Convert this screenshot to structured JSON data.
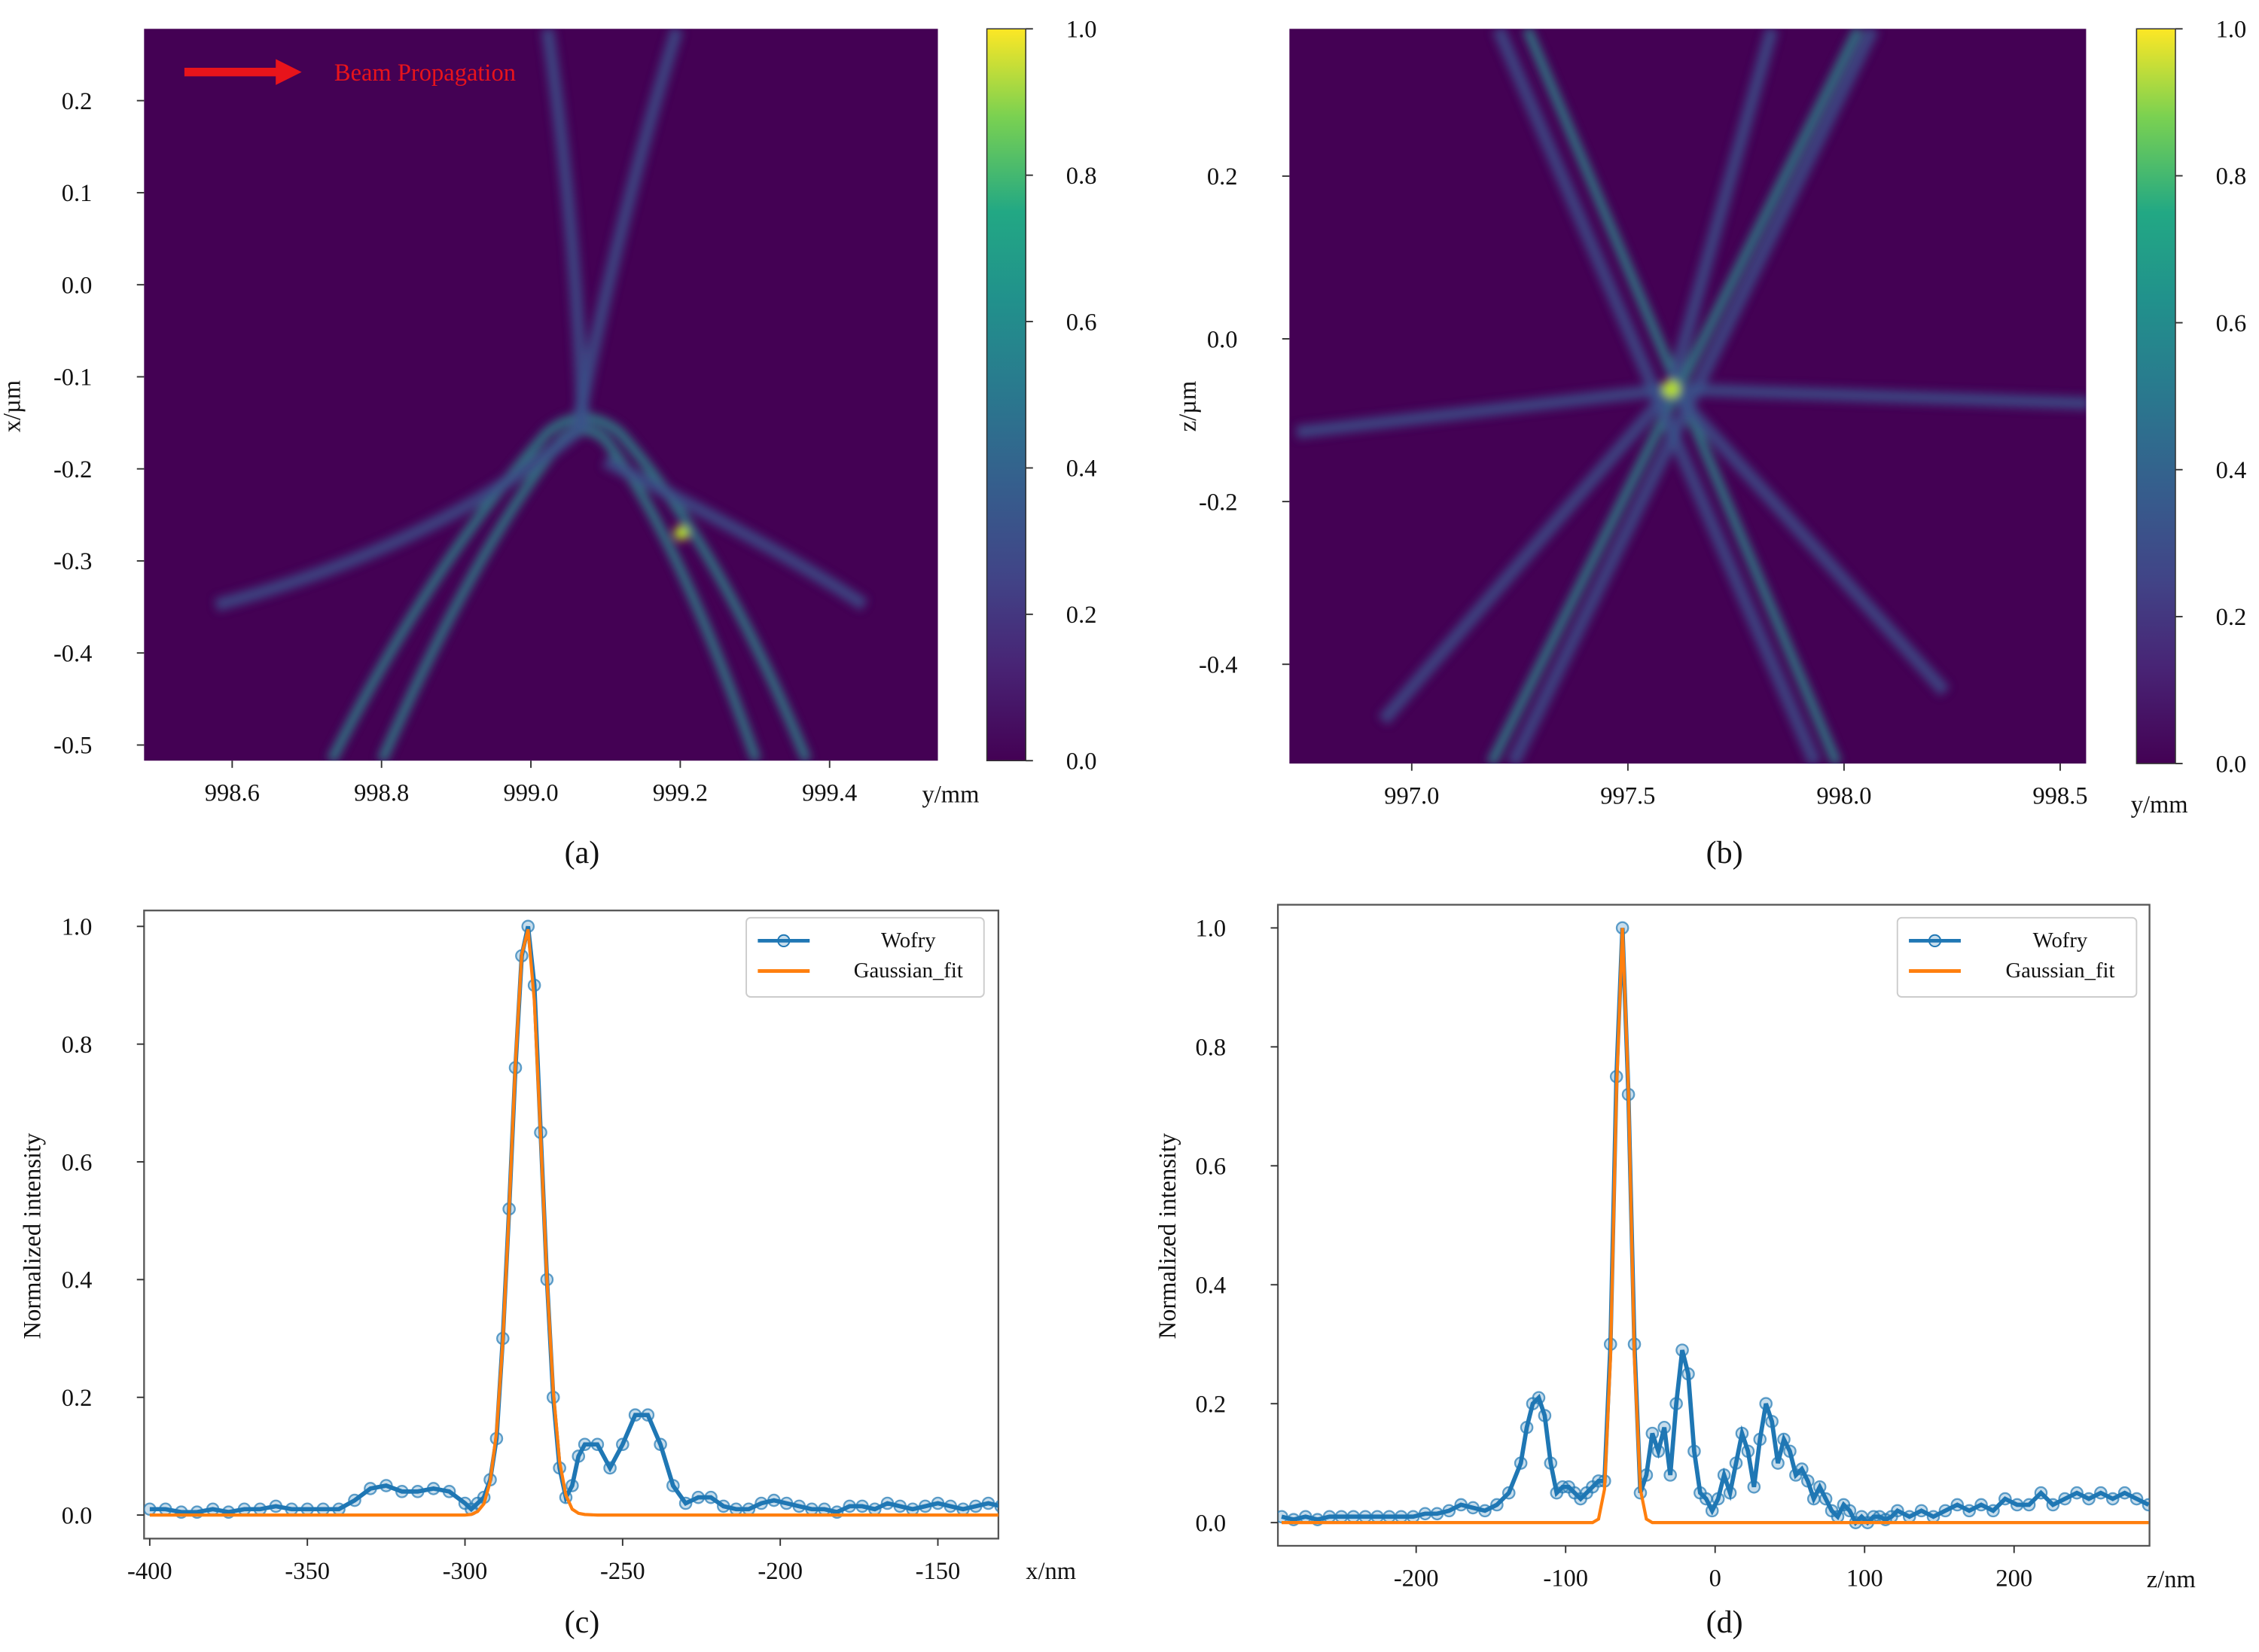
{
  "chart_data": [
    {
      "type": "heatmap",
      "panel_label": "(a)",
      "xlabel": "y/mm",
      "ylabel": "x/µm",
      "annotation": "Beam Propagation",
      "xlim": [
        998.482,
        999.545
      ],
      "ylim": [
        -0.517,
        0.278
      ],
      "xticks": [
        998.6,
        998.8,
        {
          "value": 999,
          "label": "999.0"
        },
        999.2,
        999.4
      ],
      "yticks": [
        0.2,
        0.1,
        {
          "value": 0,
          "label": "0.0"
        },
        -0.1,
        -0.2,
        -0.3,
        -0.4,
        -0.5
      ],
      "clim": [
        0,
        1
      ],
      "cticks": [
        {
          "value": 0,
          "label": "0.0"
        },
        0.2,
        0.4,
        0.6,
        0.8,
        {
          "value": 1,
          "label": "1.0"
        }
      ]
    },
    {
      "type": "heatmap",
      "panel_label": "(b)",
      "xlabel": "y/mm",
      "ylabel": "z/µm",
      "xlim": [
        996.717,
        998.56
      ],
      "ylim": [
        -0.522,
        0.381
      ],
      "xticks": [
        {
          "value": 997,
          "label": "997.0"
        },
        997.5,
        {
          "value": 998,
          "label": "998.0"
        },
        998.5
      ],
      "yticks": [
        0.2,
        {
          "value": 0,
          "label": "0.0"
        },
        -0.2,
        -0.4
      ],
      "clim": [
        0,
        1
      ],
      "cticks": [
        {
          "value": 0,
          "label": "0.0"
        },
        0.2,
        0.4,
        0.6,
        0.8,
        {
          "value": 1,
          "label": "1.0"
        }
      ]
    },
    {
      "type": "line",
      "panel_label": "(c)",
      "xlabel": "x/nm",
      "ylabel": "Normalized intensity",
      "legend": "upper right",
      "xlim": [
        -401.8,
        -130.8
      ],
      "ylim": [
        -0.04,
        1.027
      ],
      "xticks": [
        -400,
        -350,
        -300,
        -250,
        -200,
        -150
      ],
      "yticks": [
        {
          "value": 0,
          "label": "0.0"
        },
        0.2,
        0.4,
        0.6,
        0.8,
        {
          "value": 1,
          "label": "1.0"
        }
      ],
      "x": [
        -400,
        -395,
        -390,
        -385,
        -380,
        -375,
        -370,
        -365,
        -360,
        -355,
        -350,
        -345,
        -340,
        -335,
        -330,
        -325,
        -320,
        -315,
        -310,
        -305,
        -300,
        -298,
        -296,
        -294,
        -292,
        -290,
        -288,
        -286,
        -284,
        -282,
        -280,
        -278,
        -276,
        -274,
        -272,
        -270,
        -268,
        -266,
        -264,
        -262,
        -258,
        -254,
        -250,
        -246,
        -242,
        -238,
        -234,
        -230,
        -226,
        -222,
        -218,
        -214,
        -210,
        -206,
        -202,
        -198,
        -194,
        -190,
        -186,
        -182,
        -178,
        -174,
        -170,
        -166,
        -162,
        -158,
        -154,
        -150,
        -146,
        -142,
        -138,
        -134,
        -130
      ],
      "series": [
        {
          "name": "Wofry",
          "color": "#1f77b4",
          "marker": "o",
          "values": [
            0.01,
            0.01,
            0.005,
            0.005,
            0.01,
            0.005,
            0.01,
            0.01,
            0.015,
            0.01,
            0.01,
            0.01,
            0.01,
            0.025,
            0.045,
            0.05,
            0.04,
            0.04,
            0.045,
            0.04,
            0.02,
            0.01,
            0.02,
            0.03,
            0.06,
            0.13,
            0.3,
            0.52,
            0.76,
            0.95,
            1.0,
            0.9,
            0.65,
            0.4,
            0.2,
            0.08,
            0.03,
            0.05,
            0.1,
            0.12,
            0.12,
            0.08,
            0.12,
            0.17,
            0.17,
            0.12,
            0.05,
            0.02,
            0.03,
            0.03,
            0.015,
            0.01,
            0.01,
            0.02,
            0.025,
            0.02,
            0.015,
            0.01,
            0.01,
            0.005,
            0.015,
            0.015,
            0.01,
            0.02,
            0.015,
            0.01,
            0.015,
            0.02,
            0.015,
            0.01,
            0.015,
            0.02,
            0.015
          ]
        },
        {
          "name": "Gaussian_fit",
          "color": "#ff7f0e",
          "values": [
            0,
            0,
            0,
            0,
            0,
            0,
            0,
            0,
            0,
            0,
            0,
            0,
            0,
            0,
            0,
            0,
            0,
            0,
            0,
            0,
            0,
            0.001,
            0.006,
            0.019,
            0.057,
            0.141,
            0.295,
            0.519,
            0.767,
            0.952,
            0.995,
            0.873,
            0.644,
            0.4,
            0.21,
            0.091,
            0.034,
            0.01,
            0.003,
            0.001,
            0,
            0,
            0,
            0,
            0,
            0,
            0,
            0,
            0,
            0,
            0,
            0,
            0,
            0,
            0,
            0,
            0,
            0,
            0,
            0,
            0,
            0,
            0,
            0,
            0,
            0,
            0,
            0,
            0,
            0,
            0,
            0,
            0
          ]
        }
      ]
    },
    {
      "type": "line",
      "panel_label": "(d)",
      "xlabel": "z/nm",
      "ylabel": "Normalized intensity",
      "legend": "upper right",
      "xlim": [
        -292.5,
        290.6
      ],
      "ylim": [
        -0.039,
        1.039
      ],
      "xticks": [
        -200,
        -100,
        0,
        100,
        200
      ],
      "yticks": [
        {
          "value": 0,
          "label": "0.0"
        },
        0.2,
        0.4,
        0.6,
        0.8,
        {
          "value": 1,
          "label": "1.0"
        }
      ],
      "x": [
        -290,
        -282,
        -274,
        -266,
        -258,
        -250,
        -242,
        -234,
        -226,
        -218,
        -210,
        -202,
        -194,
        -186,
        -178,
        -170,
        -162,
        -154,
        -146,
        -138,
        -130,
        -126,
        -122,
        -118,
        -114,
        -110,
        -106,
        -102,
        -98,
        -94,
        -90,
        -86,
        -82,
        -78,
        -74,
        -70,
        -66,
        -62,
        -58,
        -54,
        -50,
        -46,
        -42,
        -38,
        -34,
        -30,
        -26,
        -22,
        -18,
        -14,
        -10,
        -6,
        -2,
        2,
        6,
        10,
        14,
        18,
        22,
        26,
        30,
        34,
        38,
        42,
        46,
        50,
        54,
        58,
        62,
        66,
        70,
        74,
        78,
        82,
        86,
        90,
        94,
        98,
        102,
        106,
        110,
        114,
        118,
        122,
        130,
        138,
        146,
        154,
        162,
        170,
        178,
        186,
        194,
        202,
        210,
        218,
        226,
        234,
        242,
        250,
        258,
        266,
        274,
        282,
        290
      ],
      "series": [
        {
          "name": "Wofry",
          "color": "#1f77b4",
          "marker": "o",
          "values": [
            0.01,
            0.005,
            0.01,
            0.005,
            0.01,
            0.01,
            0.01,
            0.01,
            0.01,
            0.01,
            0.01,
            0.01,
            0.015,
            0.015,
            0.02,
            0.03,
            0.025,
            0.02,
            0.03,
            0.05,
            0.1,
            0.16,
            0.2,
            0.21,
            0.18,
            0.1,
            0.05,
            0.06,
            0.06,
            0.05,
            0.04,
            0.05,
            0.06,
            0.07,
            0.07,
            0.3,
            0.75,
            1.0,
            0.72,
            0.3,
            0.05,
            0.08,
            0.15,
            0.12,
            0.16,
            0.08,
            0.2,
            0.29,
            0.25,
            0.12,
            0.05,
            0.04,
            0.02,
            0.04,
            0.08,
            0.05,
            0.1,
            0.15,
            0.12,
            0.06,
            0.14,
            0.2,
            0.17,
            0.1,
            0.14,
            0.12,
            0.08,
            0.09,
            0.07,
            0.04,
            0.06,
            0.04,
            0.02,
            0.01,
            0.03,
            0.02,
            0,
            0.01,
            0,
            0.01,
            0.01,
            0.005,
            0.01,
            0.02,
            0.01,
            0.02,
            0.01,
            0.02,
            0.03,
            0.02,
            0.03,
            0.02,
            0.04,
            0.03,
            0.03,
            0.05,
            0.03,
            0.04,
            0.05,
            0.04,
            0.05,
            0.04,
            0.05,
            0.04,
            0.03
          ]
        },
        {
          "name": "Gaussian_fit",
          "color": "#ff7f0e",
          "values": [
            0,
            0,
            0,
            0,
            0,
            0,
            0,
            0,
            0,
            0,
            0,
            0,
            0,
            0,
            0,
            0,
            0,
            0,
            0,
            0,
            0,
            0,
            0,
            0,
            0,
            0,
            0,
            0,
            0,
            0,
            0,
            0,
            0,
            0.006,
            0.056,
            0.278,
            0.726,
            1,
            0.726,
            0.278,
            0.056,
            0.006,
            0,
            0,
            0,
            0,
            0,
            0,
            0,
            0,
            0,
            0,
            0,
            0,
            0,
            0,
            0,
            0,
            0,
            0,
            0,
            0,
            0,
            0,
            0,
            0,
            0,
            0,
            0,
            0,
            0,
            0,
            0,
            0,
            0,
            0,
            0,
            0,
            0,
            0,
            0,
            0,
            0,
            0,
            0,
            0,
            0,
            0,
            0,
            0,
            0,
            0,
            0,
            0,
            0,
            0,
            0,
            0,
            0,
            0,
            0,
            0,
            0,
            0,
            0
          ]
        }
      ]
    }
  ]
}
